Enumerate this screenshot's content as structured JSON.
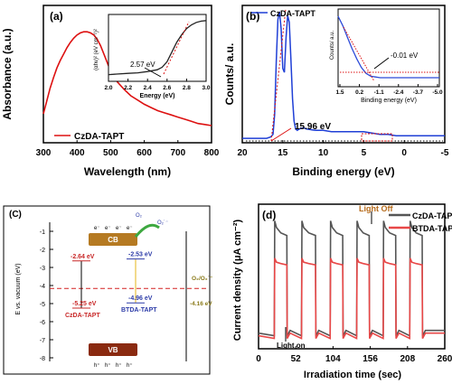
{
  "chart_data": [
    {
      "panel_label": "(a)",
      "type": "line",
      "xlabel": "Wavelength (nm)",
      "ylabel": "Absorbance (a.u.)",
      "xlim": [
        300,
        800
      ],
      "xticks": [
        "300",
        "400",
        "500",
        "600",
        "700",
        "800"
      ],
      "legend": "CzDA-TAPT",
      "color": "#dd1111",
      "series": [
        {
          "x": [
            300,
            310,
            320,
            330,
            340,
            350,
            360,
            370,
            380,
            390,
            400,
            410,
            420,
            430,
            440,
            450,
            460,
            470,
            480,
            490,
            500,
            520,
            540,
            560,
            580,
            600,
            620,
            640,
            660,
            680,
            700,
            720,
            740,
            760,
            780,
            800
          ],
          "y": [
            0.22,
            0.34,
            0.46,
            0.56,
            0.65,
            0.72,
            0.78,
            0.84,
            0.89,
            0.93,
            0.96,
            0.98,
            0.99,
            0.99,
            0.98,
            0.96,
            0.92,
            0.86,
            0.78,
            0.7,
            0.62,
            0.52,
            0.45,
            0.39,
            0.35,
            0.31,
            0.28,
            0.25,
            0.23,
            0.21,
            0.19,
            0.17,
            0.15,
            0.13,
            0.12,
            0.11
          ]
        }
      ],
      "inset": {
        "xlabel": "Energy (eV)",
        "ylabel": "(αhv)² (eV cm⁻¹)²",
        "xlim": [
          2.0,
          3.0
        ],
        "xticks": [
          "2.0",
          "2.2",
          "2.4",
          "2.6",
          "2.8",
          "3.0"
        ],
        "annotation": "2.57 eV",
        "x": [
          2.0,
          2.1,
          2.2,
          2.3,
          2.4,
          2.5,
          2.55,
          2.6,
          2.65,
          2.7,
          2.75,
          2.8,
          2.85,
          2.9,
          2.95,
          3.0
        ],
        "y": [
          0.05,
          0.06,
          0.07,
          0.08,
          0.1,
          0.13,
          0.17,
          0.26,
          0.42,
          0.58,
          0.7,
          0.8,
          0.86,
          0.9,
          0.92,
          0.93
        ]
      }
    },
    {
      "panel_label": "(b)",
      "type": "line",
      "xlabel": "Binding energy (eV)",
      "ylabel": "Counts/ a.u.",
      "xlim": [
        20,
        -5
      ],
      "xticks": [
        "20",
        "15",
        "10",
        "5",
        "0",
        "-5"
      ],
      "legend": "CzDA-TAPT",
      "color": "#1f3fd6",
      "annotation": "15.96 eV",
      "series": [
        {
          "x": [
            20,
            18,
            17,
            16.5,
            16.2,
            16,
            15.8,
            15.6,
            15.4,
            15.2,
            15,
            14.8,
            14.6,
            14.4,
            14.2,
            14,
            13.8,
            13.6,
            13.4,
            13.2,
            13,
            12.5,
            12,
            11,
            10,
            9,
            8,
            7,
            6,
            5,
            4,
            3,
            2,
            1,
            0,
            -1,
            -2,
            -3,
            -4,
            -5
          ],
          "y": [
            0.02,
            0.02,
            0.02,
            0.03,
            0.05,
            0.2,
            0.6,
            0.92,
            0.98,
            0.85,
            0.55,
            0.52,
            0.78,
            0.95,
            0.9,
            0.62,
            0.32,
            0.15,
            0.09,
            0.08,
            0.09,
            0.1,
            0.09,
            0.08,
            0.08,
            0.07,
            0.07,
            0.07,
            0.07,
            0.07,
            0.06,
            0.05,
            0.05,
            0.04,
            0.04,
            0.04,
            0.04,
            0.04,
            0.04,
            0.04
          ]
        }
      ],
      "inset": {
        "xlabel": "Binding energy (eV)",
        "ylabel": "Counts/ a.u.",
        "xlim": [
          1.5,
          -5.0
        ],
        "xticks": [
          "1.5",
          "0.2",
          "-1.1",
          "-2.4",
          "-3.7",
          "-5.0"
        ],
        "annotation": "-0.01 eV",
        "x": [
          1.5,
          1.2,
          0.9,
          0.6,
          0.3,
          0.0,
          -0.3,
          -0.6,
          -0.9,
          -1.2,
          -1.5,
          -2.0,
          -2.5,
          -3.0,
          -3.5,
          -4.0,
          -4.5,
          -5.0
        ],
        "y": [
          0.95,
          0.82,
          0.66,
          0.5,
          0.36,
          0.24,
          0.16,
          0.12,
          0.11,
          0.1,
          0.1,
          0.1,
          0.1,
          0.1,
          0.1,
          0.1,
          0.1,
          0.1
        ]
      }
    },
    {
      "panel_label": "(C)",
      "type": "diagram",
      "ylabel": "E vs. vacuum (eV)",
      "ylim": [
        -8,
        -1
      ],
      "yticks": [
        "-1",
        "-2",
        "-3",
        "-4",
        "-5",
        "-6",
        "-7",
        "-8"
      ],
      "materials": [
        {
          "name": "CzDA-TAPT",
          "cb": -2.64,
          "vb": -5.25,
          "cb_label": "-2.64 eV",
          "vb_label": "-5.25 eV",
          "color": "#c82828"
        },
        {
          "name": "BTDA-TAPT",
          "cb": -2.53,
          "vb": -4.96,
          "cb_label": "-2.53 eV",
          "vb_label": "-4.96 eV",
          "color": "#2d3ca8"
        }
      ],
      "reference": {
        "label_top": "O₂/O₂˙⁻",
        "label_bottom": "-4.16 eV",
        "value": -4.16
      },
      "cb_label": "CB",
      "vb_label": "VB",
      "o2": "O₂",
      "o2_radical": "O₂˙⁻",
      "electron": "e⁻",
      "hole": "h⁺"
    },
    {
      "panel_label": "(d)",
      "type": "line",
      "xlabel": "Irradiation time (sec)",
      "ylabel": "Current density (μA cm⁻²)",
      "xlim": [
        0,
        260
      ],
      "xticks": [
        "0",
        "52",
        "104",
        "156",
        "208",
        "260"
      ],
      "ylim": [
        0,
        1
      ],
      "annotations": [
        "Light Off",
        "Light on"
      ],
      "series": [
        {
          "name": "CzDA-TAPT",
          "color": "#555555",
          "on_level": 0.88,
          "off_level": 0.07
        },
        {
          "name": "BTDA-TAPT",
          "color": "#e84848",
          "on_level": 0.62,
          "off_level": 0.05
        }
      ],
      "on_intervals": [
        [
          22,
          40
        ],
        [
          60,
          80
        ],
        [
          100,
          118
        ],
        [
          137,
          155
        ],
        [
          174,
          192
        ],
        [
          211,
          229
        ]
      ]
    }
  ]
}
